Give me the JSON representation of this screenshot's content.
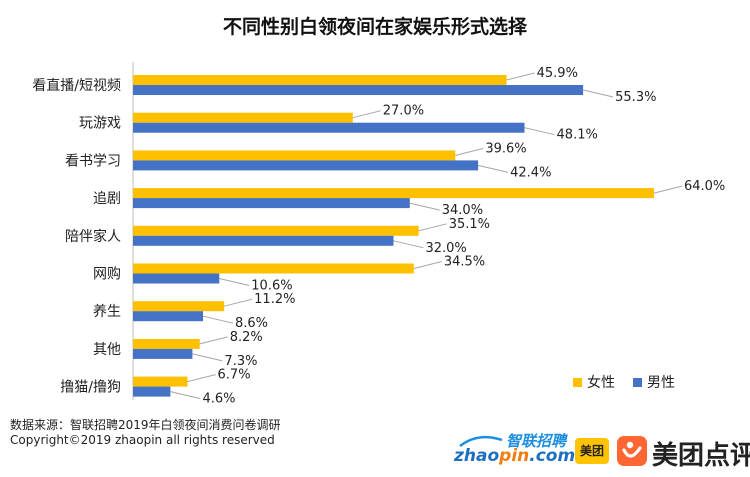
{
  "chart_data": {
    "type": "bar",
    "orientation": "horizontal",
    "title": "不同性别白领夜间在家娱乐形式选择",
    "categories": [
      "看直播/短视频",
      "玩游戏",
      "看书学习",
      "追剧",
      "陪伴家人",
      "网购",
      "养生",
      "其他",
      "撸猫/撸狗"
    ],
    "series": [
      {
        "name": "女性",
        "color": "#ffc000",
        "values": [
          45.9,
          27.0,
          39.6,
          64.0,
          35.1,
          34.5,
          11.2,
          8.2,
          6.7
        ],
        "labels": [
          "45.9%",
          "27.0%",
          "39.6%",
          "64.0%",
          "35.1%",
          "34.5%",
          "11.2%",
          "8.2%",
          "6.7%"
        ]
      },
      {
        "name": "男性",
        "color": "#4472c4",
        "values": [
          55.3,
          48.1,
          42.4,
          34.0,
          32.0,
          10.6,
          8.6,
          7.3,
          4.6
        ],
        "labels": [
          "55.3%",
          "48.1%",
          "42.4%",
          "34.0%",
          "32.0%",
          "10.6%",
          "8.6%",
          "7.3%",
          "4.6%"
        ]
      }
    ],
    "xlim": [
      0,
      64
    ],
    "grid": false,
    "legend_position": "bottom-right"
  },
  "footer": {
    "source": "数据来源：智联招聘2019年白领夜间消费问卷调研",
    "copyright": "Copyright©2019 zhaopin all rights reserved"
  },
  "logos": {
    "zhaopin_cn": "智联招聘",
    "zhaopin_zhao": "zhao",
    "zhaopin_pin": "pin",
    "zhaopin_com": ".com",
    "meituan_badge": "美团",
    "dianping": "美团点评"
  }
}
